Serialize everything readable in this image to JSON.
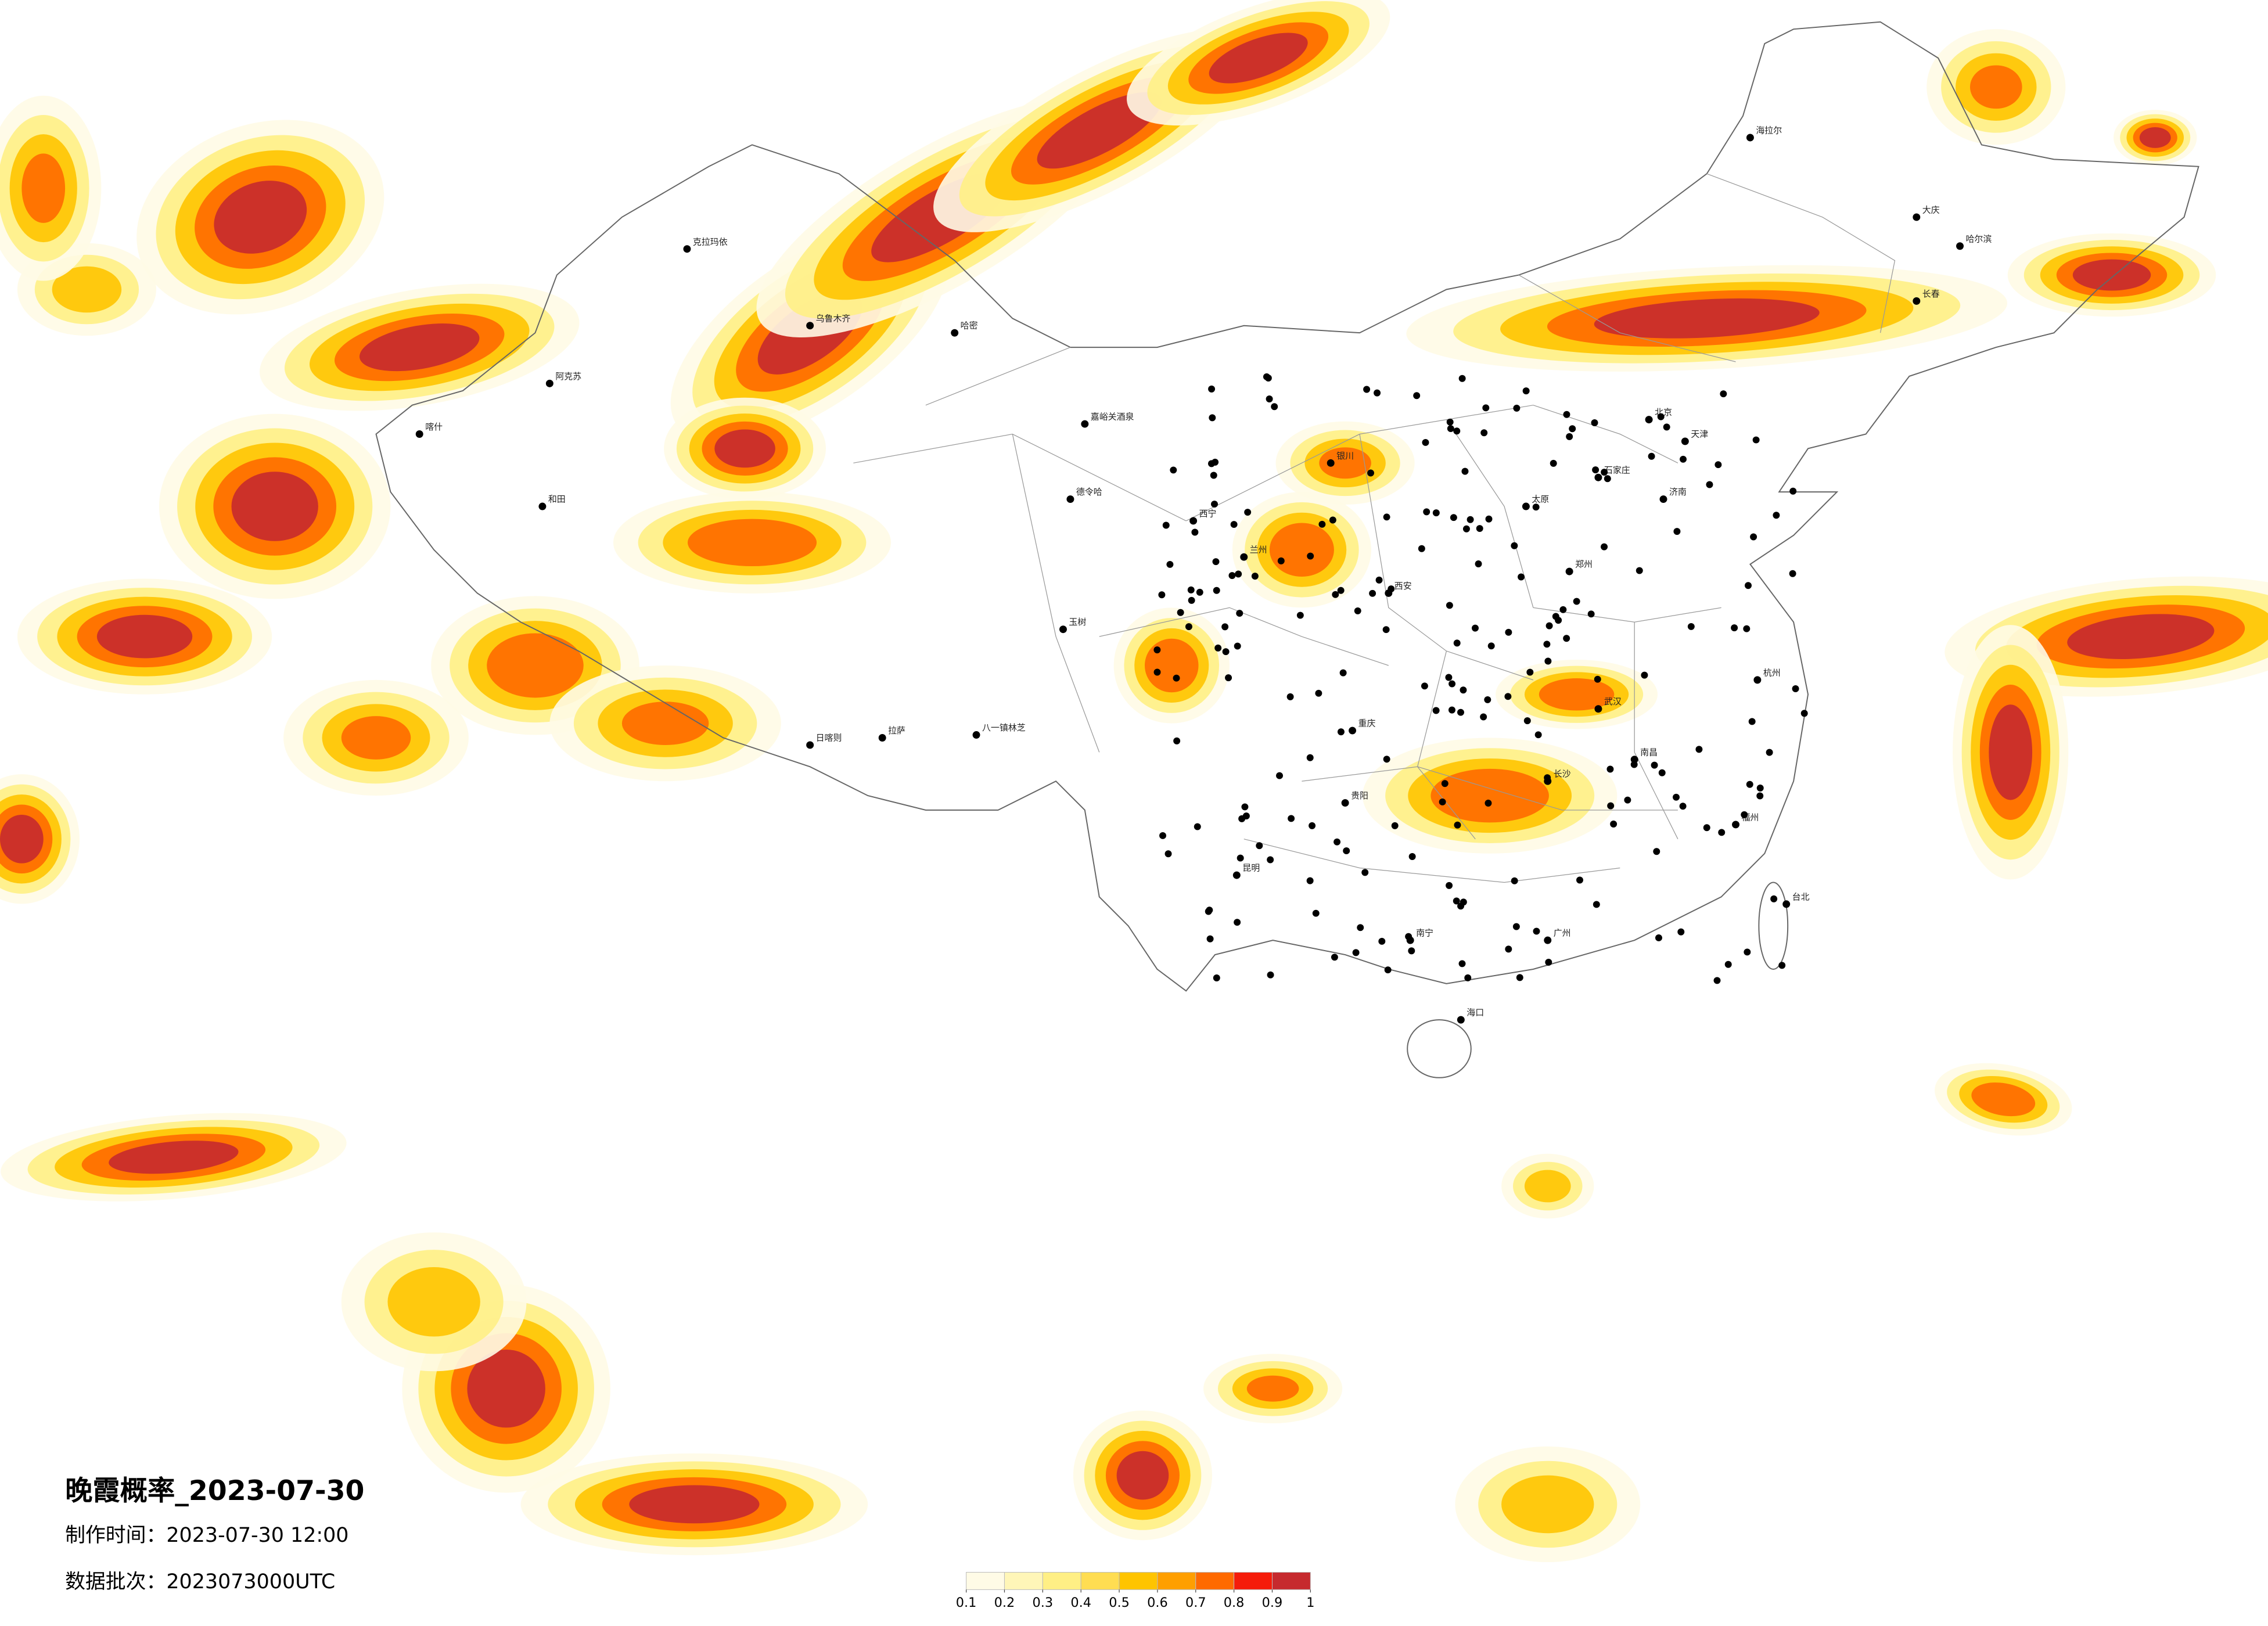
{
  "title": "晚霞概率_2023-07-30",
  "made_time": "制作时间：2023-07-30 12:00",
  "data_batch": "数据批次：2023073000UTC",
  "legend": {
    "ticks": [
      0.1,
      0.2,
      0.3,
      0.4,
      0.5,
      0.6,
      0.7,
      0.8,
      0.9,
      1
    ],
    "colors": [
      "#fffbe6",
      "#fff6b8",
      "#ffef85",
      "#ffdd52",
      "#ffc400",
      "#ff9f00",
      "#ff6a00",
      "#f51c0a",
      "#c62a2e"
    ]
  },
  "cities": [
    "克拉玛依",
    "阿克苏",
    "和田",
    "哈密",
    "德令哈",
    "嘉峪关酒泉",
    "拉萨",
    "日喀则",
    "八一镇林芝",
    "玉树",
    "西宁",
    "兰州",
    "银川",
    "北京",
    "天津",
    "石家庄",
    "太原",
    "西安",
    "郑州",
    "济南",
    "武汉",
    "长沙",
    "南昌",
    "杭州",
    "福州",
    "广州",
    "南宁",
    "昆明",
    "贵阳",
    "重庆",
    "海口",
    "哈尔滨",
    "长春",
    "海拉尔",
    "大庆",
    "台北",
    "乌鲁木齐",
    "喀什"
  ]
}
